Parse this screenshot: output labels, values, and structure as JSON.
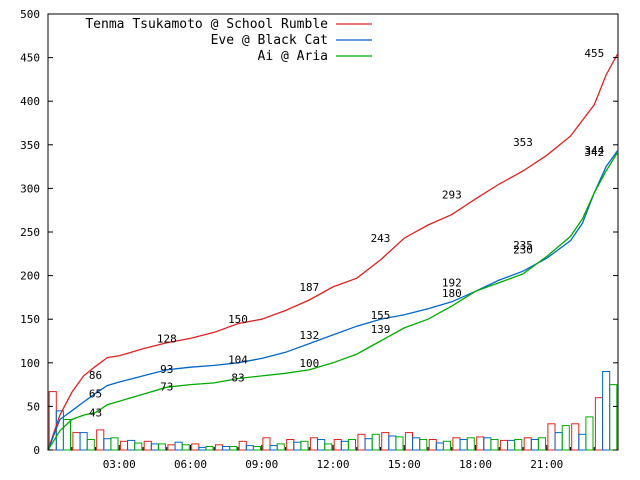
{
  "chart_data": {
    "type": "line",
    "x_unit": "hour",
    "xlim": [
      0,
      24
    ],
    "ylim": [
      0,
      500
    ],
    "yticks": [
      0,
      50,
      100,
      150,
      200,
      250,
      300,
      350,
      400,
      450,
      500
    ],
    "xtick_values": [
      3,
      6,
      9,
      12,
      15,
      18,
      21
    ],
    "xtick_labels": [
      "03:00",
      "06:00",
      "09:00",
      "12:00",
      "15:00",
      "18:00",
      "21:00"
    ],
    "grid": false,
    "legend_position": "top-left",
    "series": [
      {
        "name": "Tenma Tsukamoto @ School Rumble",
        "color": "#e02020",
        "x": [
          0,
          0.5,
          1,
          1.5,
          2,
          2.5,
          3,
          4,
          5,
          6,
          7,
          8,
          9,
          10,
          11,
          12,
          13,
          14,
          15,
          16,
          17,
          18,
          19,
          20,
          21,
          22,
          22.5,
          23,
          23.5,
          24
        ],
        "y": [
          0,
          40,
          66,
          85,
          96,
          106,
          108,
          116,
          123,
          128,
          135,
          145,
          150,
          160,
          172,
          187,
          197,
          218,
          243,
          258,
          270,
          288,
          305,
          320,
          338,
          360,
          378,
          396,
          430,
          455
        ],
        "labels": [
          {
            "x": 2,
            "y": 86,
            "text": "86"
          },
          {
            "x": 5,
            "y": 128,
            "text": "128"
          },
          {
            "x": 8,
            "y": 150,
            "text": "150"
          },
          {
            "x": 11,
            "y": 187,
            "text": "187"
          },
          {
            "x": 14,
            "y": 243,
            "text": "243"
          },
          {
            "x": 17,
            "y": 293,
            "text": "293"
          },
          {
            "x": 20,
            "y": 353,
            "text": "353"
          },
          {
            "x": 23,
            "y": 455,
            "text": "455"
          }
        ]
      },
      {
        "name": "Eve @ Black Cat",
        "color": "#0066cc",
        "x": [
          0,
          0.5,
          1,
          1.5,
          2,
          2.5,
          3,
          4,
          5,
          6,
          7,
          8,
          9,
          10,
          11,
          12,
          13,
          14,
          15,
          16,
          17,
          18,
          19,
          20,
          21,
          22,
          22.5,
          23,
          23.5,
          24
        ],
        "y": [
          0,
          35,
          45,
          55,
          65,
          74,
          78,
          85,
          92,
          95,
          97,
          100,
          105,
          112,
          122,
          132,
          142,
          150,
          155,
          162,
          170,
          182,
          195,
          205,
          220,
          240,
          260,
          295,
          325,
          344
        ],
        "labels": [
          {
            "x": 2,
            "y": 65,
            "text": "65"
          },
          {
            "x": 5,
            "y": 93,
            "text": "93"
          },
          {
            "x": 8,
            "y": 104,
            "text": "104"
          },
          {
            "x": 11,
            "y": 132,
            "text": "132"
          },
          {
            "x": 14,
            "y": 155,
            "text": "155"
          },
          {
            "x": 17,
            "y": 192,
            "text": "192"
          },
          {
            "x": 20,
            "y": 230,
            "text": "230"
          },
          {
            "x": 23,
            "y": 344,
            "text": "344"
          }
        ]
      },
      {
        "name": "Ai @ Aria",
        "color": "#00aa00",
        "x": [
          0,
          0.5,
          1,
          1.5,
          2,
          2.5,
          3,
          4,
          5,
          6,
          7,
          8,
          9,
          10,
          11,
          12,
          13,
          14,
          15,
          16,
          17,
          18,
          19,
          20,
          21,
          22,
          22.5,
          23,
          23.5,
          24
        ],
        "y": [
          0,
          22,
          35,
          40,
          43,
          52,
          56,
          64,
          72,
          75,
          77,
          82,
          85,
          88,
          92,
          100,
          110,
          125,
          140,
          150,
          165,
          182,
          192,
          202,
          222,
          245,
          265,
          295,
          320,
          342
        ],
        "labels": [
          {
            "x": 2,
            "y": 43,
            "text": "43"
          },
          {
            "x": 5,
            "y": 73,
            "text": "73"
          },
          {
            "x": 8,
            "y": 83,
            "text": "83"
          },
          {
            "x": 11,
            "y": 100,
            "text": "100"
          },
          {
            "x": 14,
            "y": 139,
            "text": "139"
          },
          {
            "x": 17,
            "y": 180,
            "text": "180"
          },
          {
            "x": 20,
            "y": 235,
            "text": "235"
          },
          {
            "x": 23,
            "y": 342,
            "text": "342"
          }
        ]
      }
    ],
    "bars": {
      "width": 0.3,
      "series": [
        {
          "color": "#e02020",
          "offset": -0.3,
          "x": [
            0.5,
            1.5,
            2.5,
            3.5,
            4.5,
            5.5,
            6.5,
            7.5,
            8.5,
            9.5,
            10.5,
            11.5,
            12.5,
            13.5,
            14.5,
            15.5,
            16.5,
            17.5,
            18.5,
            19.5,
            20.5,
            21.5,
            22.5,
            23.5
          ],
          "values": [
            67,
            20,
            23,
            10,
            10,
            6,
            7,
            6,
            10,
            14,
            12,
            14,
            12,
            18,
            20,
            20,
            12,
            14,
            15,
            11,
            14,
            30,
            30,
            60
          ]
        },
        {
          "color": "#0066cc",
          "offset": 0,
          "x": [
            0.5,
            1.5,
            2.5,
            3.5,
            4.5,
            5.5,
            6.5,
            7.5,
            8.5,
            9.5,
            10.5,
            11.5,
            12.5,
            13.5,
            14.5,
            15.5,
            16.5,
            17.5,
            18.5,
            19.5,
            20.5,
            21.5,
            22.5,
            23.5
          ],
          "values": [
            45,
            20,
            13,
            11,
            7,
            9,
            3,
            4,
            5,
            5,
            9,
            12,
            10,
            13,
            16,
            14,
            8,
            12,
            14,
            11,
            12,
            20,
            18,
            90
          ]
        },
        {
          "color": "#00aa00",
          "offset": 0.3,
          "x": [
            0.5,
            1.5,
            2.5,
            3.5,
            4.5,
            5.5,
            6.5,
            7.5,
            8.5,
            9.5,
            10.5,
            11.5,
            12.5,
            13.5,
            14.5,
            15.5,
            16.5,
            17.5,
            18.5,
            19.5,
            20.5,
            21.5,
            22.5,
            23.5
          ],
          "values": [
            35,
            12,
            14,
            8,
            7,
            6,
            4,
            4,
            4,
            7,
            10,
            7,
            12,
            18,
            15,
            12,
            10,
            14,
            12,
            12,
            14,
            28,
            38,
            75
          ]
        }
      ]
    }
  }
}
